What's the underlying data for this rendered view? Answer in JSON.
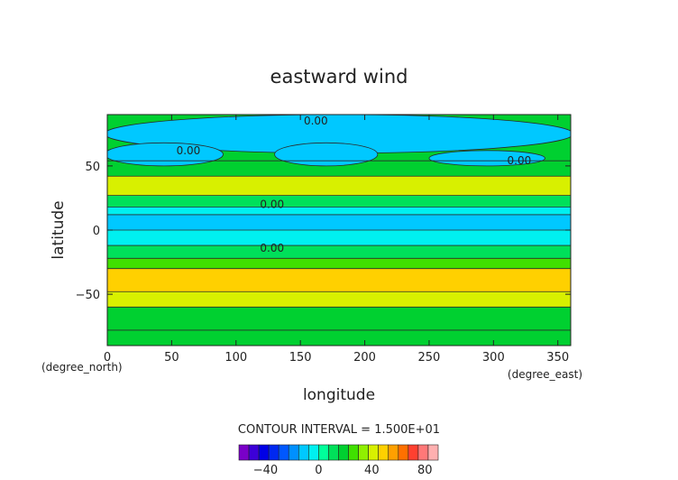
{
  "chart_data": {
    "type": "heatmap",
    "title": "eastward wind",
    "xlabel": "longitude",
    "ylabel": "latitude",
    "x_unit": "(degree_east)",
    "y_unit": "(degree_north)",
    "xlim": [
      0,
      360
    ],
    "ylim": [
      -90,
      90
    ],
    "x_ticks": [
      0,
      50,
      100,
      150,
      200,
      250,
      300,
      350
    ],
    "y_ticks": [
      -50,
      0,
      50
    ],
    "contour_interval_label": "CONTOUR INTERVAL = 1.500E+01",
    "contour_labels": [
      {
        "text": "0.00",
        "lon": 162,
        "lat": 85
      },
      {
        "text": "0.00",
        "lon": 63,
        "lat": 62
      },
      {
        "text": "0.00",
        "lon": 320,
        "lat": 54
      },
      {
        "text": "0.00",
        "lon": 128,
        "lat": 20
      },
      {
        "text": "0.00",
        "lon": 128,
        "lat": -14
      }
    ],
    "colorbar": {
      "ticks": [
        -40,
        0,
        40,
        80
      ],
      "colors": [
        "#7a00c8",
        "#3c00d8",
        "#0000e6",
        "#0028f0",
        "#0058ff",
        "#0090ff",
        "#00c8ff",
        "#00f0f0",
        "#00ff9a",
        "#00e05a",
        "#00d030",
        "#40e000",
        "#90f000",
        "#d8f000",
        "#ffd000",
        "#ffa000",
        "#ff7000",
        "#ff4030",
        "#ff7878",
        "#ffb0b0"
      ]
    },
    "bands": [
      {
        "lat": [
          -90,
          -78
        ],
        "value": 22
      },
      {
        "lat": [
          -78,
          -60
        ],
        "value": 22
      },
      {
        "lat": [
          -60,
          -48
        ],
        "value": 38
      },
      {
        "lat": [
          -48,
          -30
        ],
        "value": 45
      },
      {
        "lat": [
          -30,
          -22
        ],
        "value": 28
      },
      {
        "lat": [
          -22,
          -12
        ],
        "value": 12
      },
      {
        "lat": [
          -12,
          0
        ],
        "value": -5
      },
      {
        "lat": [
          0,
          12
        ],
        "value": -15
      },
      {
        "lat": [
          12,
          18
        ],
        "value": -5
      },
      {
        "lat": [
          18,
          27
        ],
        "value": 12
      },
      {
        "lat": [
          27,
          42
        ],
        "value": 42
      },
      {
        "lat": [
          42,
          54
        ],
        "value": 20
      },
      {
        "lat": [
          54,
          90
        ],
        "value": 18
      }
    ],
    "negative_regions": [
      {
        "lon": [
          -2,
          362
        ],
        "lat": [
          60,
          90
        ],
        "value": -8
      },
      {
        "lon": [
          -2,
          90
        ],
        "lat": [
          50,
          68
        ],
        "value": -8
      },
      {
        "lon": [
          130,
          210
        ],
        "lat": [
          50,
          68
        ],
        "value": -8
      },
      {
        "lon": [
          250,
          340
        ],
        "lat": [
          50,
          62
        ],
        "value": -8
      }
    ]
  }
}
